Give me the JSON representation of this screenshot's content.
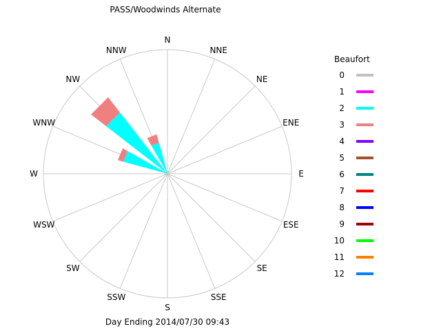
{
  "chart_data": {
    "type": "wind-rose",
    "title": "PASS/Woodwinds Alternate",
    "footer": "Day Ending 2014/07/30 09:43",
    "legend_title": "Beaufort",
    "directions": [
      "N",
      "NNE",
      "NE",
      "ENE",
      "E",
      "ESE",
      "SE",
      "SSE",
      "S",
      "SSW",
      "SW",
      "WSW",
      "W",
      "WNW",
      "NW",
      "NNW"
    ],
    "beaufort": [
      {
        "level": "0",
        "color": "#c0c0c0"
      },
      {
        "level": "1",
        "color": "#ff00ff"
      },
      {
        "level": "2",
        "color": "#00ffff"
      },
      {
        "level": "3",
        "color": "#f08080"
      },
      {
        "level": "4",
        "color": "#8000ff"
      },
      {
        "level": "5",
        "color": "#a0522d"
      },
      {
        "level": "6",
        "color": "#008080"
      },
      {
        "level": "7",
        "color": "#ff0000"
      },
      {
        "level": "8",
        "color": "#0000ff"
      },
      {
        "level": "9",
        "color": "#a00000"
      },
      {
        "level": "10",
        "color": "#00ff00"
      },
      {
        "level": "11",
        "color": "#ff8000"
      },
      {
        "level": "12",
        "color": "#0080ff"
      }
    ],
    "max_radius_value": 1.0,
    "sectors": [
      {
        "direction": "NW",
        "stack": [
          {
            "level": "2",
            "value": 0.625
          },
          {
            "level": "3",
            "value": 0.155
          }
        ]
      },
      {
        "direction": "WNW",
        "stack": [
          {
            "level": "2",
            "value": 0.37
          },
          {
            "level": "3",
            "value": 0.045
          }
        ]
      },
      {
        "direction": "NNW",
        "stack": [
          {
            "level": "2",
            "value": 0.26
          },
          {
            "level": "3",
            "value": 0.07
          }
        ]
      }
    ],
    "grid": true
  }
}
